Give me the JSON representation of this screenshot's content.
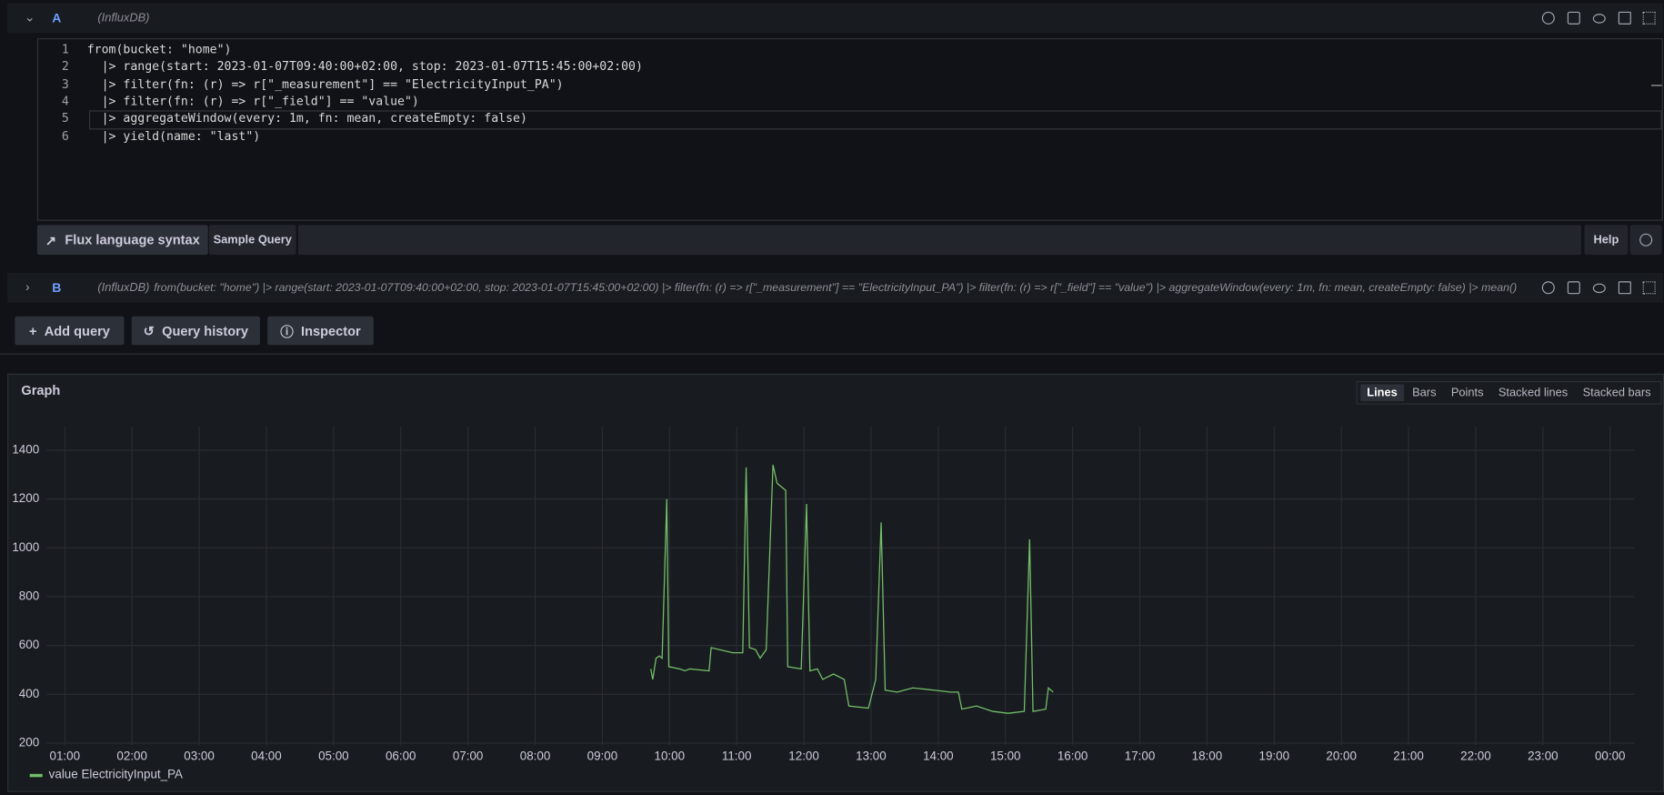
{
  "query_a": {
    "label": "A",
    "datasource": "(InfluxDB)",
    "line_numbers": [
      "1",
      "2",
      "3",
      "4",
      "5",
      "6"
    ],
    "lines": [
      "from(bucket: \"home\")",
      "  |> range(start: 2023-01-07T09:40:00+02:00, stop: 2023-01-07T15:45:00+02:00)",
      "  |> filter(fn: (r) => r[\"_measurement\"] == \"ElectricityInput_PA\")",
      "  |> filter(fn: (r) => r[\"_field\"] == \"value\")",
      "  |> aggregateWindow(every: 1m, fn: mean, createEmpty: false)",
      "  |> yield(name: \"last\")"
    ],
    "buttons": {
      "syntax": "Flux language syntax",
      "sample": "Sample Query",
      "help": "Help"
    }
  },
  "query_b": {
    "label": "B",
    "datasource": "(InfluxDB)",
    "text": "from(bucket: \"home\") |> range(start: 2023-01-07T09:40:00+02:00, stop: 2023-01-07T15:45:00+02:00) |> filter(fn: (r) => r[\"_measurement\"] == \"ElectricityInput_PA\") |> filter(fn: (r) => r[\"_field\"] == \"value\") |> aggregateWindow(every: 1m, fn: mean, createEmpty: false) |> mean()"
  },
  "actions": [
    "Add query",
    "Query history",
    "Inspector"
  ],
  "panel": {
    "modes": [
      "Lines",
      "Bars",
      "Points",
      "Stacked lines",
      "Stacked bars"
    ],
    "active_mode": "Lines"
  },
  "chart_data": {
    "type": "line",
    "title": "Graph",
    "x": [
      9.72,
      9.75,
      9.8,
      9.85,
      9.89,
      9.96,
      9.99,
      10.15,
      10.23,
      10.3,
      10.59,
      10.62,
      10.94,
      11.09,
      11.14,
      11.19,
      11.28,
      11.35,
      11.44,
      11.54,
      11.6,
      11.73,
      11.76,
      11.96,
      12.04,
      12.09,
      12.2,
      12.28,
      12.44,
      12.6,
      12.67,
      12.96,
      13.07,
      13.15,
      13.21,
      13.39,
      13.62,
      13.94,
      14.18,
      14.3,
      14.35,
      14.57,
      14.81,
      15.04,
      15.28,
      15.36,
      15.41,
      15.6,
      15.64,
      15.71
    ],
    "series": [
      {
        "name": "value ElectricityInput_PA",
        "color": "#73bf69",
        "values": [
          504,
          461,
          548,
          557,
          548,
          1200,
          513,
          504,
          496,
          504,
          496,
          591,
          570,
          570,
          1330,
          591,
          583,
          548,
          583,
          1340,
          1265,
          1235,
          513,
          504,
          1180,
          496,
          504,
          461,
          483,
          461,
          352,
          343,
          461,
          1104,
          417,
          409,
          426,
          417,
          409,
          409,
          339,
          352,
          330,
          322,
          330,
          1035,
          330,
          339,
          426,
          409
        ]
      }
    ],
    "xlim": [
      0.73,
      24.36
    ],
    "xticks": [
      {
        "value": 1,
        "label": "01:00"
      },
      {
        "value": 2,
        "label": "02:00"
      },
      {
        "value": 3,
        "label": "03:00"
      },
      {
        "value": 4,
        "label": "04:00"
      },
      {
        "value": 5,
        "label": "05:00"
      },
      {
        "value": 6,
        "label": "06:00"
      },
      {
        "value": 7,
        "label": "07:00"
      },
      {
        "value": 8,
        "label": "08:00"
      },
      {
        "value": 9,
        "label": "09:00"
      },
      {
        "value": 10,
        "label": "10:00"
      },
      {
        "value": 11,
        "label": "11:00"
      },
      {
        "value": 12,
        "label": "12:00"
      },
      {
        "value": 13,
        "label": "13:00"
      },
      {
        "value": 14,
        "label": "14:00"
      },
      {
        "value": 15,
        "label": "15:00"
      },
      {
        "value": 16,
        "label": "16:00"
      },
      {
        "value": 17,
        "label": "17:00"
      },
      {
        "value": 18,
        "label": "18:00"
      },
      {
        "value": 19,
        "label": "19:00"
      },
      {
        "value": 20,
        "label": "20:00"
      },
      {
        "value": 21,
        "label": "21:00"
      },
      {
        "value": 22,
        "label": "22:00"
      },
      {
        "value": 23,
        "label": "23:00"
      },
      {
        "value": 24,
        "label": "00:00"
      }
    ],
    "ylim": [
      200,
      1496
    ],
    "yticks": [
      200,
      400,
      600,
      800,
      1000,
      1200,
      1400
    ],
    "grid": true
  }
}
